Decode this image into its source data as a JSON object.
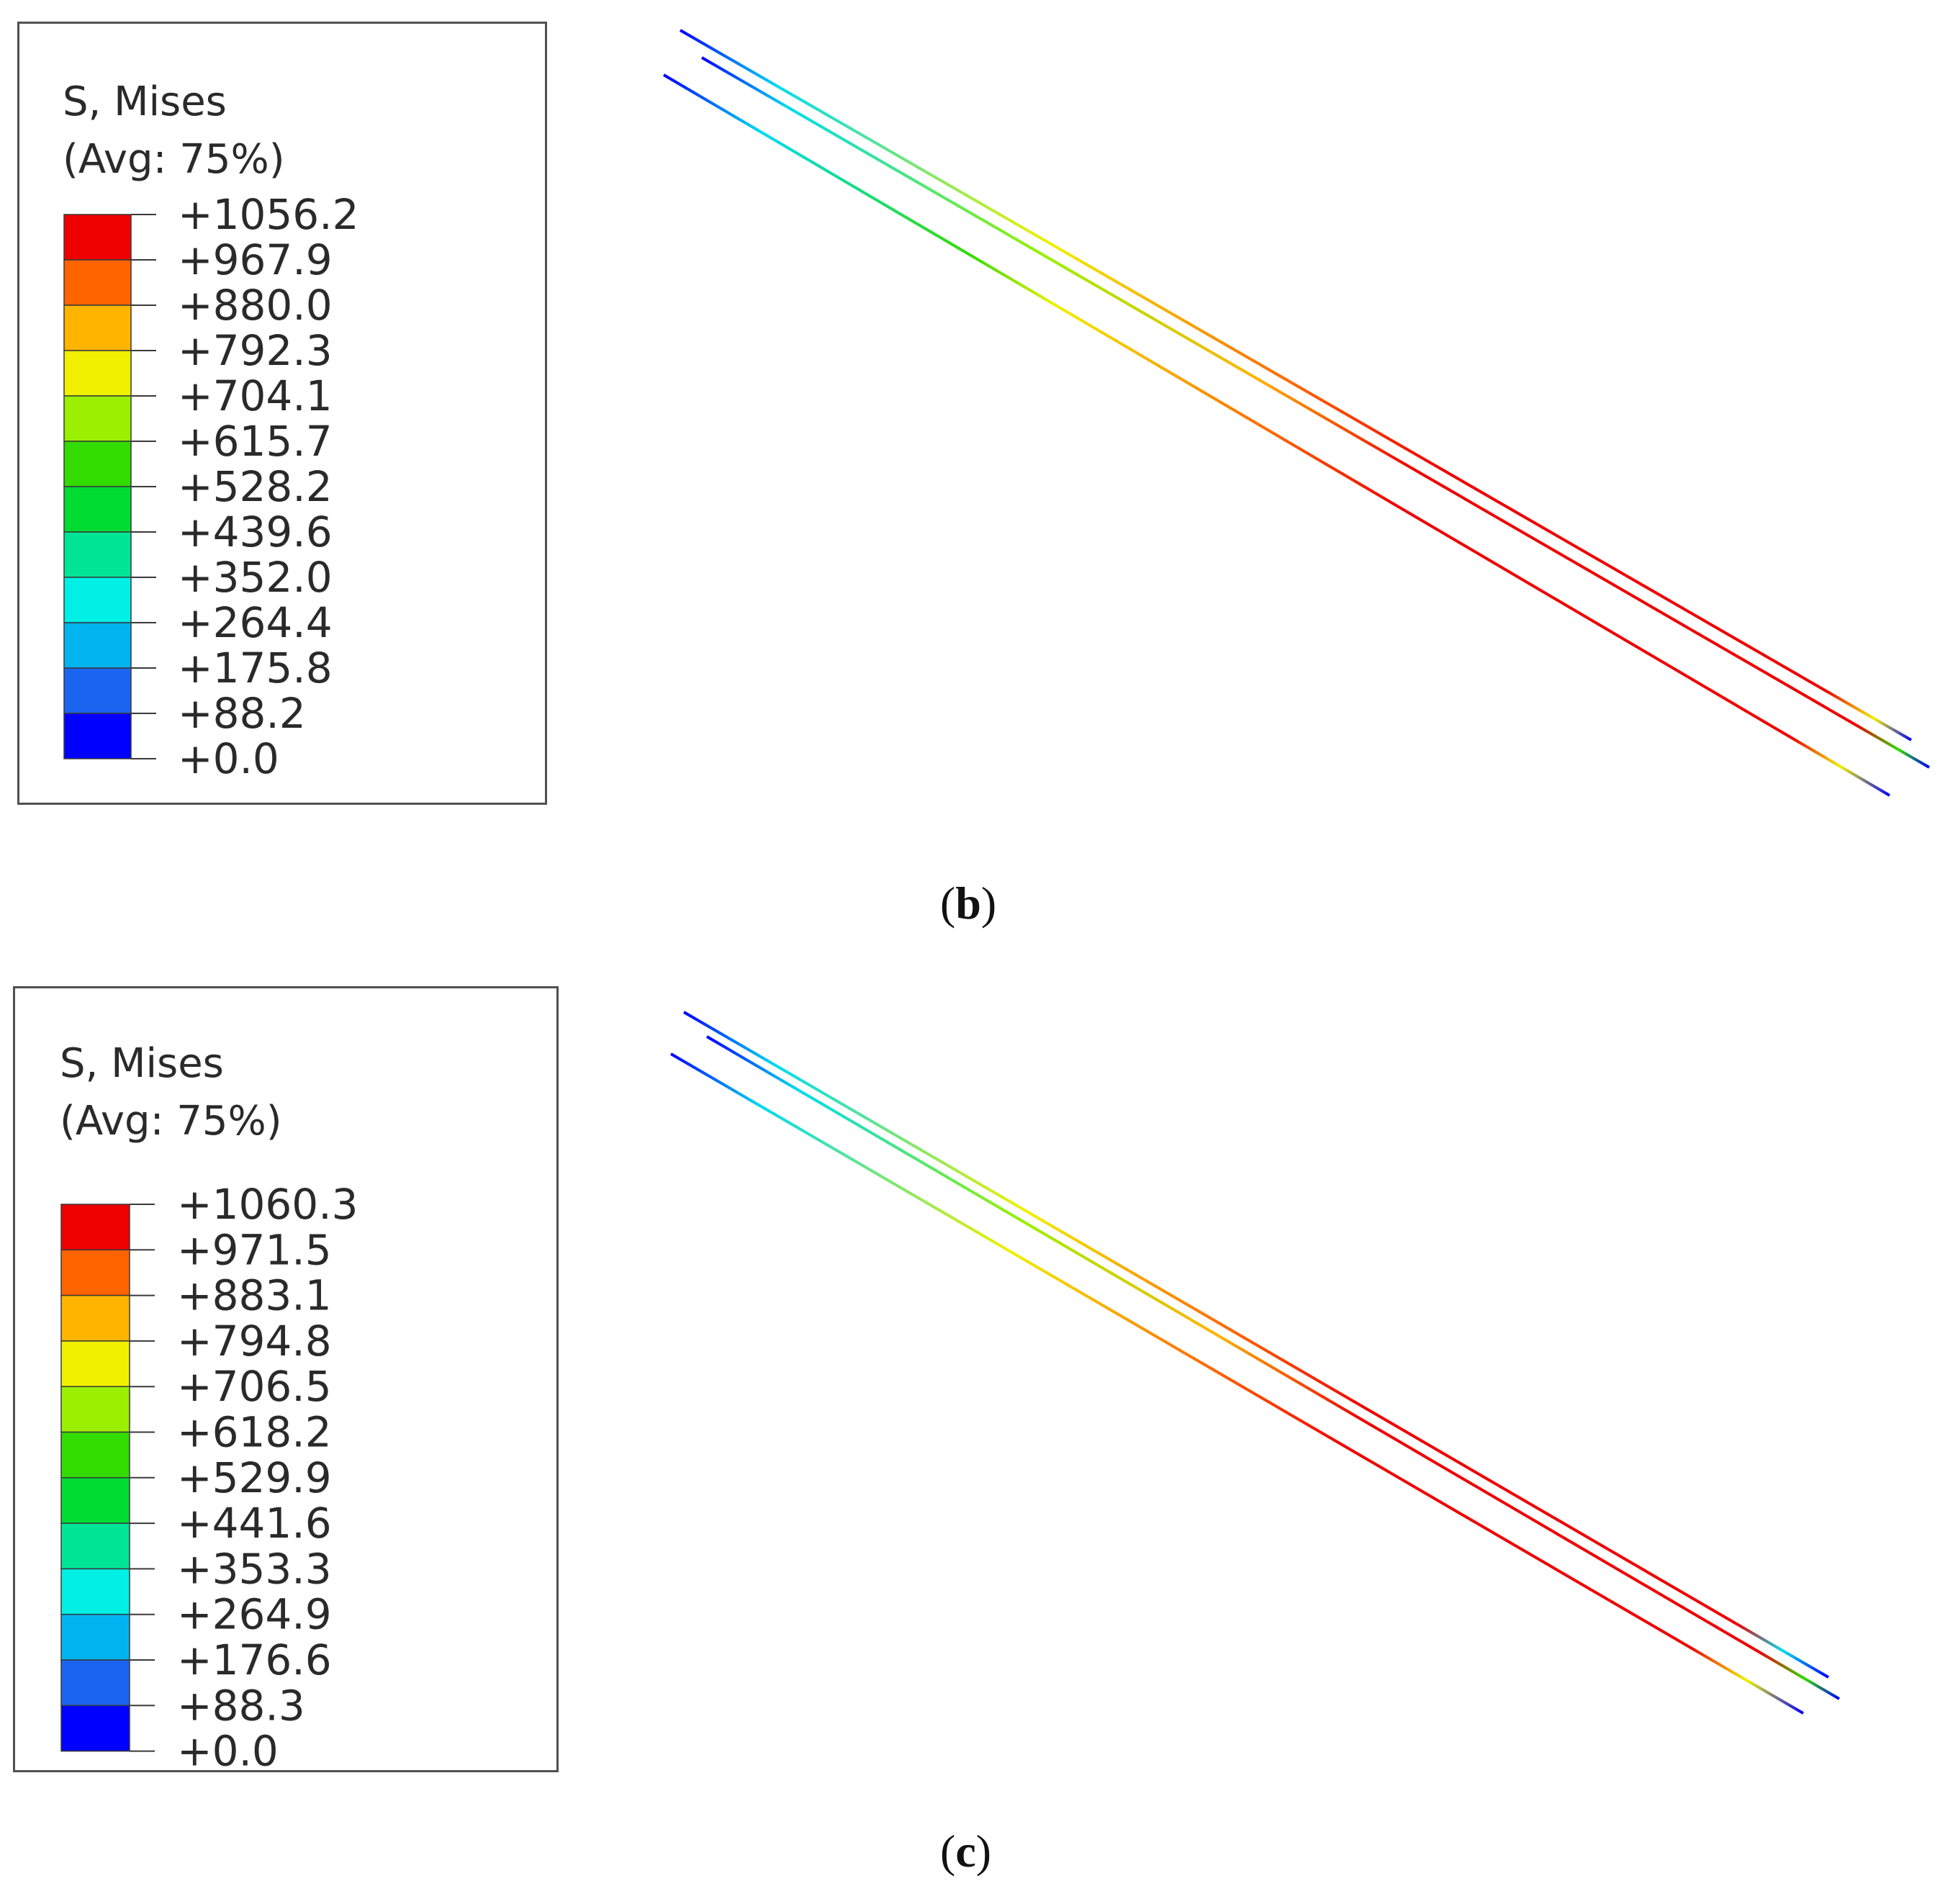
{
  "palette": [
    "#0000ff",
    "#1a64f0",
    "#00b4f0",
    "#00f0e6",
    "#00e696",
    "#00dc32",
    "#32dc00",
    "#9af000",
    "#f0f000",
    "#ffb400",
    "#ff6400",
    "#ee0000"
  ],
  "panels": [
    {
      "id": "b",
      "caption": "b",
      "legend": {
        "title_line1": "S, Mises",
        "title_line2": "(Avg: 75%)",
        "labels": [
          "+1056.2",
          "+967.9",
          "+880.0",
          "+792.3",
          "+704.1",
          "+615.7",
          "+528.2",
          "+439.6",
          "+352.0",
          "+264.4",
          "+175.8",
          "+88.2",
          "+0.0"
        ]
      }
    },
    {
      "id": "c",
      "caption": "c",
      "legend": {
        "title_line1": "S, Mises",
        "title_line2": "(Avg: 75%)",
        "labels": [
          "+1060.3",
          "+971.5",
          "+883.1",
          "+794.8",
          "+706.5",
          "+618.2",
          "+529.9",
          "+441.6",
          "+353.3",
          "+264.9",
          "+176.6",
          "+88.3",
          "+0.0"
        ]
      }
    }
  ]
}
